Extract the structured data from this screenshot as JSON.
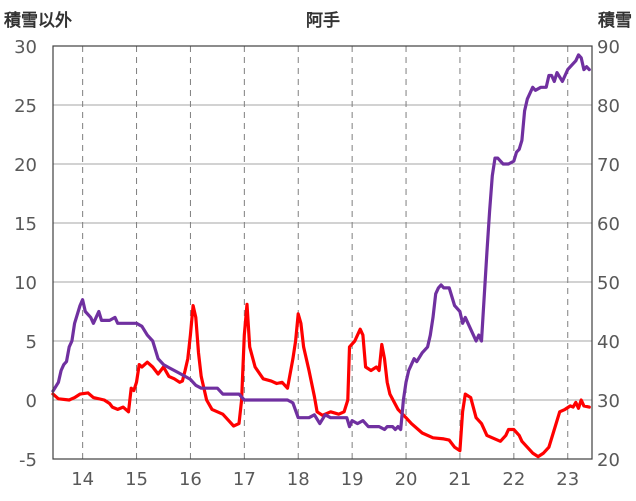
{
  "chart_data": {
    "type": "line",
    "title": "阿手",
    "left_axis_label": "積雪以外",
    "right_axis_label": "積雪",
    "left_ylim": [
      -5,
      30
    ],
    "left_yticks": [
      -5,
      0,
      5,
      10,
      15,
      20,
      25,
      30
    ],
    "right_ylim": [
      20,
      90
    ],
    "right_yticks": [
      20,
      30,
      40,
      50,
      60,
      70,
      80,
      90
    ],
    "xlim": [
      13.45,
      23.45
    ],
    "xticks": [
      "14",
      "15",
      "16",
      "17",
      "18",
      "19",
      "20",
      "21",
      "22",
      "23"
    ],
    "xtick_values": [
      14,
      15,
      16,
      17,
      18,
      19,
      20,
      21,
      22,
      23
    ],
    "grid": true,
    "legend": "none",
    "series": [
      {
        "axis": "left",
        "color": "#ff0000",
        "points": [
          [
            13.45,
            0.5
          ],
          [
            13.55,
            0.1
          ],
          [
            13.75,
            0.0
          ],
          [
            13.85,
            0.2
          ],
          [
            13.95,
            0.5
          ],
          [
            14.1,
            0.6
          ],
          [
            14.2,
            0.2
          ],
          [
            14.4,
            0.0
          ],
          [
            14.5,
            -0.3
          ],
          [
            14.55,
            -0.6
          ],
          [
            14.65,
            -0.8
          ],
          [
            14.75,
            -0.6
          ],
          [
            14.85,
            -1.0
          ],
          [
            14.9,
            1.0
          ],
          [
            14.95,
            0.8
          ],
          [
            15.0,
            1.5
          ],
          [
            15.05,
            3.0
          ],
          [
            15.1,
            2.8
          ],
          [
            15.2,
            3.2
          ],
          [
            15.3,
            2.8
          ],
          [
            15.4,
            2.2
          ],
          [
            15.5,
            2.8
          ],
          [
            15.6,
            2.0
          ],
          [
            15.7,
            1.8
          ],
          [
            15.8,
            1.5
          ],
          [
            15.85,
            1.6
          ],
          [
            15.9,
            2.5
          ],
          [
            15.95,
            3.5
          ],
          [
            16.0,
            5.5
          ],
          [
            16.05,
            8.0
          ],
          [
            16.1,
            7.0
          ],
          [
            16.15,
            4.0
          ],
          [
            16.2,
            2.0
          ],
          [
            16.3,
            0.0
          ],
          [
            16.4,
            -0.8
          ],
          [
            16.5,
            -1.0
          ],
          [
            16.6,
            -1.2
          ],
          [
            16.7,
            -1.7
          ],
          [
            16.8,
            -2.2
          ],
          [
            16.9,
            -2.0
          ],
          [
            16.95,
            0.0
          ],
          [
            17.0,
            5.5
          ],
          [
            17.05,
            8.1
          ],
          [
            17.1,
            4.5
          ],
          [
            17.2,
            2.8
          ],
          [
            17.35,
            1.8
          ],
          [
            17.5,
            1.6
          ],
          [
            17.6,
            1.4
          ],
          [
            17.7,
            1.5
          ],
          [
            17.8,
            1.0
          ],
          [
            17.9,
            3.5
          ],
          [
            17.95,
            5.0
          ],
          [
            18.0,
            7.3
          ],
          [
            18.05,
            6.5
          ],
          [
            18.1,
            4.5
          ],
          [
            18.2,
            2.5
          ],
          [
            18.3,
            0.3
          ],
          [
            18.35,
            -1.0
          ],
          [
            18.45,
            -1.3
          ],
          [
            18.6,
            -1.0
          ],
          [
            18.75,
            -1.2
          ],
          [
            18.85,
            -1.0
          ],
          [
            18.92,
            0.0
          ],
          [
            18.95,
            4.5
          ],
          [
            19.05,
            5.0
          ],
          [
            19.15,
            6.0
          ],
          [
            19.2,
            5.5
          ],
          [
            19.25,
            2.8
          ],
          [
            19.35,
            2.5
          ],
          [
            19.45,
            2.8
          ],
          [
            19.5,
            2.5
          ],
          [
            19.55,
            4.7
          ],
          [
            19.6,
            3.5
          ],
          [
            19.65,
            1.5
          ],
          [
            19.7,
            0.5
          ],
          [
            19.85,
            -0.8
          ],
          [
            20.0,
            -1.5
          ],
          [
            20.1,
            -2.0
          ],
          [
            20.3,
            -2.8
          ],
          [
            20.5,
            -3.2
          ],
          [
            20.7,
            -3.3
          ],
          [
            20.8,
            -3.4
          ],
          [
            20.9,
            -4.0
          ],
          [
            21.0,
            -4.3
          ],
          [
            21.05,
            -1.0
          ],
          [
            21.1,
            0.5
          ],
          [
            21.2,
            0.2
          ],
          [
            21.3,
            -1.5
          ],
          [
            21.4,
            -2.0
          ],
          [
            21.5,
            -3.0
          ],
          [
            21.6,
            -3.2
          ],
          [
            21.75,
            -3.5
          ],
          [
            21.85,
            -3.0
          ],
          [
            21.9,
            -2.5
          ],
          [
            22.0,
            -2.5
          ],
          [
            22.1,
            -3.0
          ],
          [
            22.15,
            -3.5
          ],
          [
            22.25,
            -4.0
          ],
          [
            22.35,
            -4.5
          ],
          [
            22.45,
            -4.8
          ],
          [
            22.55,
            -4.5
          ],
          [
            22.65,
            -4.0
          ],
          [
            22.75,
            -2.5
          ],
          [
            22.85,
            -1.0
          ],
          [
            22.95,
            -0.8
          ],
          [
            23.05,
            -0.5
          ],
          [
            23.1,
            -0.6
          ],
          [
            23.15,
            -0.2
          ],
          [
            23.2,
            -0.7
          ],
          [
            23.25,
            0.0
          ],
          [
            23.3,
            -0.5
          ],
          [
            23.4,
            -0.6
          ]
        ]
      },
      {
        "axis": "right",
        "color": "#7030a0",
        "points": [
          [
            13.45,
            31.5
          ],
          [
            13.55,
            33
          ],
          [
            13.6,
            35
          ],
          [
            13.65,
            36
          ],
          [
            13.7,
            36.5
          ],
          [
            13.75,
            39
          ],
          [
            13.8,
            40
          ],
          [
            13.85,
            43
          ],
          [
            13.95,
            46
          ],
          [
            14.0,
            47
          ],
          [
            14.05,
            45
          ],
          [
            14.15,
            44
          ],
          [
            14.2,
            43
          ],
          [
            14.25,
            44
          ],
          [
            14.3,
            45
          ],
          [
            14.35,
            43.5
          ],
          [
            14.5,
            43.5
          ],
          [
            14.6,
            44
          ],
          [
            14.65,
            43
          ],
          [
            15.0,
            43
          ],
          [
            15.1,
            42.5
          ],
          [
            15.2,
            41
          ],
          [
            15.3,
            40
          ],
          [
            15.4,
            37
          ],
          [
            15.5,
            36
          ],
          [
            15.6,
            35.5
          ],
          [
            15.7,
            35
          ],
          [
            15.8,
            34.5
          ],
          [
            15.9,
            34
          ],
          [
            16.0,
            33.5
          ],
          [
            16.1,
            32.5
          ],
          [
            16.2,
            32
          ],
          [
            16.5,
            32
          ],
          [
            16.6,
            31
          ],
          [
            16.9,
            31
          ],
          [
            17.0,
            30
          ],
          [
            17.8,
            30
          ],
          [
            17.9,
            29.5
          ],
          [
            18.0,
            27
          ],
          [
            18.2,
            27
          ],
          [
            18.3,
            27.5
          ],
          [
            18.4,
            26
          ],
          [
            18.5,
            27.5
          ],
          [
            18.6,
            27
          ],
          [
            18.9,
            27
          ],
          [
            18.95,
            25.5
          ],
          [
            19.0,
            26.5
          ],
          [
            19.1,
            26
          ],
          [
            19.2,
            26.5
          ],
          [
            19.3,
            25.5
          ],
          [
            19.5,
            25.5
          ],
          [
            19.6,
            25
          ],
          [
            19.65,
            25.5
          ],
          [
            19.75,
            25.5
          ],
          [
            19.8,
            25
          ],
          [
            19.85,
            25.5
          ],
          [
            19.9,
            25
          ],
          [
            19.95,
            30
          ],
          [
            20.0,
            33
          ],
          [
            20.05,
            35
          ],
          [
            20.1,
            36
          ],
          [
            20.15,
            37
          ],
          [
            20.2,
            36.5
          ],
          [
            20.3,
            38
          ],
          [
            20.4,
            39
          ],
          [
            20.45,
            41
          ],
          [
            20.5,
            44
          ],
          [
            20.55,
            48
          ],
          [
            20.6,
            49
          ],
          [
            20.65,
            49.5
          ],
          [
            20.7,
            49
          ],
          [
            20.8,
            49
          ],
          [
            20.9,
            46
          ],
          [
            21.0,
            45
          ],
          [
            21.05,
            43
          ],
          [
            21.1,
            44
          ],
          [
            21.2,
            42
          ],
          [
            21.3,
            40
          ],
          [
            21.35,
            41
          ],
          [
            21.4,
            40
          ],
          [
            21.5,
            55
          ],
          [
            21.55,
            62
          ],
          [
            21.6,
            68
          ],
          [
            21.65,
            71
          ],
          [
            21.7,
            71
          ],
          [
            21.8,
            70
          ],
          [
            21.9,
            70
          ],
          [
            22.0,
            70.5
          ],
          [
            22.05,
            72
          ],
          [
            22.1,
            72.5
          ],
          [
            22.15,
            74
          ],
          [
            22.2,
            79
          ],
          [
            22.25,
            81
          ],
          [
            22.3,
            82
          ],
          [
            22.35,
            83
          ],
          [
            22.4,
            82.5
          ],
          [
            22.5,
            83
          ],
          [
            22.6,
            83
          ],
          [
            22.65,
            85
          ],
          [
            22.7,
            85
          ],
          [
            22.75,
            84
          ],
          [
            22.8,
            85.5
          ],
          [
            22.9,
            84
          ],
          [
            23.0,
            86
          ],
          [
            23.1,
            87
          ],
          [
            23.15,
            87.5
          ],
          [
            23.2,
            88.5
          ],
          [
            23.25,
            88
          ],
          [
            23.3,
            86
          ],
          [
            23.35,
            86.5
          ],
          [
            23.4,
            86
          ]
        ]
      }
    ]
  }
}
